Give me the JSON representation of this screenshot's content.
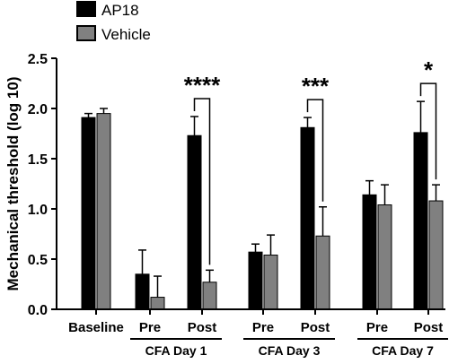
{
  "chart_data": {
    "type": "bar",
    "ylabel": "Mechanical threshold (log 10)",
    "ylim": [
      0,
      2.5
    ],
    "yticks": [
      "0.0",
      "0.5",
      "1.0",
      "1.5",
      "2.0",
      "2.5"
    ],
    "categories": [
      "Baseline",
      "Pre",
      "Post",
      "Pre",
      "Post",
      "Pre",
      "Post"
    ],
    "groups": [
      {
        "label": "CFA Day 1",
        "categories": [
          1,
          2
        ]
      },
      {
        "label": "CFA Day 3",
        "categories": [
          3,
          4
        ]
      },
      {
        "label": "CFA Day 7",
        "categories": [
          5,
          6
        ]
      }
    ],
    "series": [
      {
        "name": "AP18",
        "color": "#000000",
        "values": [
          1.91,
          0.35,
          1.73,
          0.57,
          1.81,
          1.14,
          1.76
        ],
        "errors": [
          0.04,
          0.24,
          0.19,
          0.08,
          0.1,
          0.14,
          0.31
        ]
      },
      {
        "name": "Vehicle",
        "color": "#808080",
        "values": [
          1.95,
          0.12,
          0.27,
          0.54,
          0.73,
          1.04,
          1.08
        ],
        "errors": [
          0.05,
          0.21,
          0.12,
          0.2,
          0.29,
          0.2,
          0.16
        ]
      }
    ],
    "significance": [
      {
        "category": 2,
        "label": "****"
      },
      {
        "category": 4,
        "label": "***"
      },
      {
        "category": 6,
        "label": "*"
      }
    ],
    "legend_position": "top-left"
  }
}
